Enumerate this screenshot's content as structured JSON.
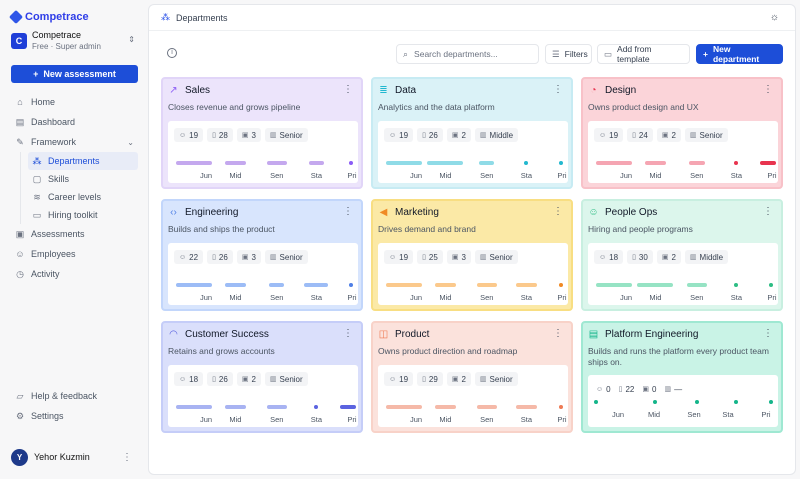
{
  "brand": {
    "name": "Competrace"
  },
  "org": {
    "initial": "C",
    "name": "Competrace",
    "role": "Free · Super admin"
  },
  "sidebar": {
    "new_assessment": "New assessment",
    "nav": [
      {
        "label": "Home",
        "icon": "home-icon"
      },
      {
        "label": "Dashboard",
        "icon": "dashboard-icon"
      },
      {
        "label": "Framework",
        "icon": "wrench-icon"
      }
    ],
    "framework_items": [
      {
        "label": "Departments",
        "icon": "departments-icon",
        "active": true
      },
      {
        "label": "Skills",
        "icon": "skills-icon"
      },
      {
        "label": "Career levels",
        "icon": "layers-icon"
      },
      {
        "label": "Hiring toolkit",
        "icon": "document-icon"
      }
    ],
    "nav_bottom": [
      {
        "label": "Assessments",
        "icon": "clipboard-icon"
      },
      {
        "label": "Employees",
        "icon": "users-icon"
      },
      {
        "label": "Activity",
        "icon": "activity-icon"
      }
    ],
    "help": "Help & feedback",
    "settings": "Settings",
    "user": {
      "initial": "Y",
      "name": "Yehor Kuzmin"
    }
  },
  "header": {
    "title": "Departments"
  },
  "toolbar": {
    "search_placeholder": "Search departments...",
    "filters": "Filters",
    "add_template": "Add from template",
    "new_department": "New department"
  },
  "departments": [
    {
      "name": "Sales",
      "icon": "trend-icon",
      "desc": "Closes revenue and grows pipeline",
      "people": "19",
      "skills": "28",
      "assessments": "3",
      "level": "Senior",
      "bg": "#ece4fb",
      "border": "#e1d5f8",
      "bar": "#c4a8ee",
      "dot": "#8b5cf6"
    },
    {
      "name": "Data",
      "icon": "database-icon",
      "desc": "Analytics and the data platform",
      "people": "19",
      "skills": "26",
      "assessments": "2",
      "level": "Middle",
      "bg": "#daf2f7",
      "border": "#c7ebf3",
      "bar": "#8fdbe7",
      "dot": "#22b8cf"
    },
    {
      "name": "Design",
      "icon": "palette-icon",
      "desc": "Owns product design and UX",
      "people": "19",
      "skills": "24",
      "assessments": "2",
      "level": "Senior",
      "bg": "#fbd4d9",
      "border": "#f8c1c8",
      "bar": "#f5a5b2",
      "dot": "#e8344f"
    },
    {
      "name": "Engineering",
      "icon": "code-icon",
      "desc": "Builds and ships the product",
      "people": "22",
      "skills": "26",
      "assessments": "3",
      "level": "Senior",
      "bg": "#d8e5fd",
      "border": "#c2d6fb",
      "bar": "#9cbcf6",
      "dot": "#4f7fe6"
    },
    {
      "name": "Marketing",
      "icon": "megaphone-icon",
      "desc": "Drives demand and brand",
      "people": "19",
      "skills": "25",
      "assessments": "3",
      "level": "Senior",
      "bg": "#fbe9a6",
      "border": "#f8de82",
      "bar": "#fbc98c",
      "dot": "#f08a24"
    },
    {
      "name": "People Ops",
      "icon": "people-icon",
      "desc": "Hiring and people programs",
      "people": "18",
      "skills": "30",
      "assessments": "2",
      "level": "Middle",
      "bg": "#dcf6ec",
      "border": "#c8efe0",
      "bar": "#96e3c4",
      "dot": "#2dbd84"
    },
    {
      "name": "Customer Success",
      "icon": "headset-icon",
      "desc": "Retains and grows accounts",
      "people": "18",
      "skills": "26",
      "assessments": "2",
      "level": "Senior",
      "bg": "#dadffb",
      "border": "#c5cdf8",
      "bar": "#a8b3f2",
      "dot": "#5b63e0"
    },
    {
      "name": "Product",
      "icon": "box-icon",
      "desc": "Owns product direction and roadmap",
      "people": "19",
      "skills": "29",
      "assessments": "2",
      "level": "Senior",
      "bg": "#fbe2dc",
      "border": "#f8d2c8",
      "bar": "#f5b9a8",
      "dot": "#ee7a54"
    },
    {
      "name": "Platform Engineering",
      "icon": "server-icon",
      "desc": "Builds and runs the platform every product team ships on.",
      "people": "0",
      "skills": "22",
      "assessments": "0",
      "level": "—",
      "bg": "#c9f3e6",
      "border": "#9fe8d2",
      "bar": "#5fd3b0",
      "dot": "#14b58a"
    }
  ],
  "levels": [
    "Jun",
    "Mid",
    "Sen",
    "Sta",
    "Pri"
  ],
  "distributions": [
    [
      0.6,
      0.34,
      0.34,
      0.26,
      0.04
    ],
    [
      0.6,
      0.6,
      0.25,
      0.04,
      0.04
    ],
    [
      0.6,
      0.34,
      0.26,
      0.04,
      0.26
    ],
    [
      0.6,
      0.34,
      0.25,
      0.4,
      0.04
    ],
    [
      0.6,
      0.34,
      0.34,
      0.34,
      0.04
    ],
    [
      0.6,
      0.6,
      0.34,
      0.04,
      0.04
    ],
    [
      0.6,
      0.34,
      0.34,
      0.04,
      0.26
    ],
    [
      0.6,
      0.34,
      0.34,
      0.34,
      0.04
    ],
    [
      0.04,
      0.04,
      0.04,
      0.04,
      0.04
    ]
  ]
}
